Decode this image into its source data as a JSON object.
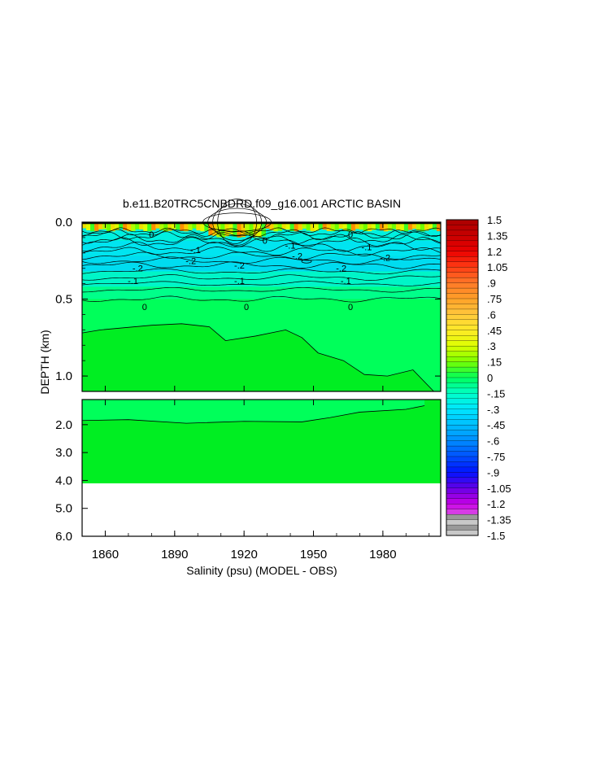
{
  "chart_data": {
    "type": "heatmap",
    "title": "b.e11.B20TRC5CNBDRD.f09_g16.001 ARCTIC BASIN",
    "xlabel": "Salinity (psu) (MODEL - OBS)",
    "ylabel": "DEPTH (km)",
    "x_range": [
      1850,
      2005
    ],
    "x_ticks": [
      "1860",
      "1890",
      "1920",
      "1950",
      "1980"
    ],
    "x_tick_values": [
      1860,
      1890,
      1920,
      1950,
      1980
    ],
    "upper_panel": {
      "depth_range_km": [
        0.0,
        1.1
      ],
      "y_ticks": [
        "0.0",
        "0.5",
        "1.0"
      ],
      "y_tick_values": [
        0.0,
        0.5,
        1.0
      ]
    },
    "lower_panel": {
      "depth_range_km": [
        1.1,
        6.0
      ],
      "y_ticks": [
        "2.0",
        "3.0",
        "4.0",
        "5.0",
        "6.0"
      ],
      "y_tick_values": [
        2.0,
        3.0,
        4.0,
        5.0,
        6.0
      ],
      "data_bottom_km": 4.1
    },
    "colorbar": {
      "min": -1.5,
      "max": 1.5,
      "step": 0.05,
      "labels": [
        "1.5",
        "1.35",
        "1.2",
        "1.05",
        ".9",
        ".75",
        ".6",
        ".45",
        ".3",
        ".15",
        "0",
        "-.15",
        "-.3",
        "-.45",
        "-.6",
        "-.75",
        "-.9",
        "-1.05",
        "-1.2",
        "-1.35",
        "-1.5"
      ],
      "label_values": [
        1.5,
        1.35,
        1.2,
        1.05,
        0.9,
        0.75,
        0.6,
        0.45,
        0.3,
        0.15,
        0,
        -0.15,
        -0.3,
        -0.45,
        -0.6,
        -0.75,
        -0.9,
        -1.05,
        -1.2,
        -1.35,
        -1.5
      ]
    },
    "contour_labels": [
      {
        "text": "0",
        "x": 1877,
        "depth_km": 0.55
      },
      {
        "text": "0",
        "x": 1921,
        "depth_km": 0.55
      },
      {
        "text": "0",
        "x": 1966,
        "depth_km": 0.55
      },
      {
        "text": "-.1",
        "x": 1872,
        "depth_km": 0.38
      },
      {
        "text": "-.1",
        "x": 1918,
        "depth_km": 0.38
      },
      {
        "text": "-.1",
        "x": 1964,
        "depth_km": 0.38
      },
      {
        "text": "-.2",
        "x": 1874,
        "depth_km": 0.3
      },
      {
        "text": "-.2",
        "x": 1918,
        "depth_km": 0.28
      },
      {
        "text": "-.2",
        "x": 1962,
        "depth_km": 0.3
      },
      {
        "text": "-.2",
        "x": 1897,
        "depth_km": 0.25
      },
      {
        "text": "-.2",
        "x": 1943,
        "depth_km": 0.22
      },
      {
        "text": "-.2",
        "x": 1981,
        "depth_km": 0.23
      },
      {
        "text": "-.1",
        "x": 1899,
        "depth_km": 0.18
      },
      {
        "text": "-.1",
        "x": 1940,
        "depth_km": 0.15
      },
      {
        "text": "-.1",
        "x": 1973,
        "depth_km": 0.16
      },
      {
        "text": "0",
        "x": 1929,
        "depth_km": 0.12
      },
      {
        "text": "0",
        "x": 1966,
        "depth_km": 0.08
      },
      {
        "text": "0",
        "x": 1880,
        "depth_km": 0.08
      }
    ]
  }
}
